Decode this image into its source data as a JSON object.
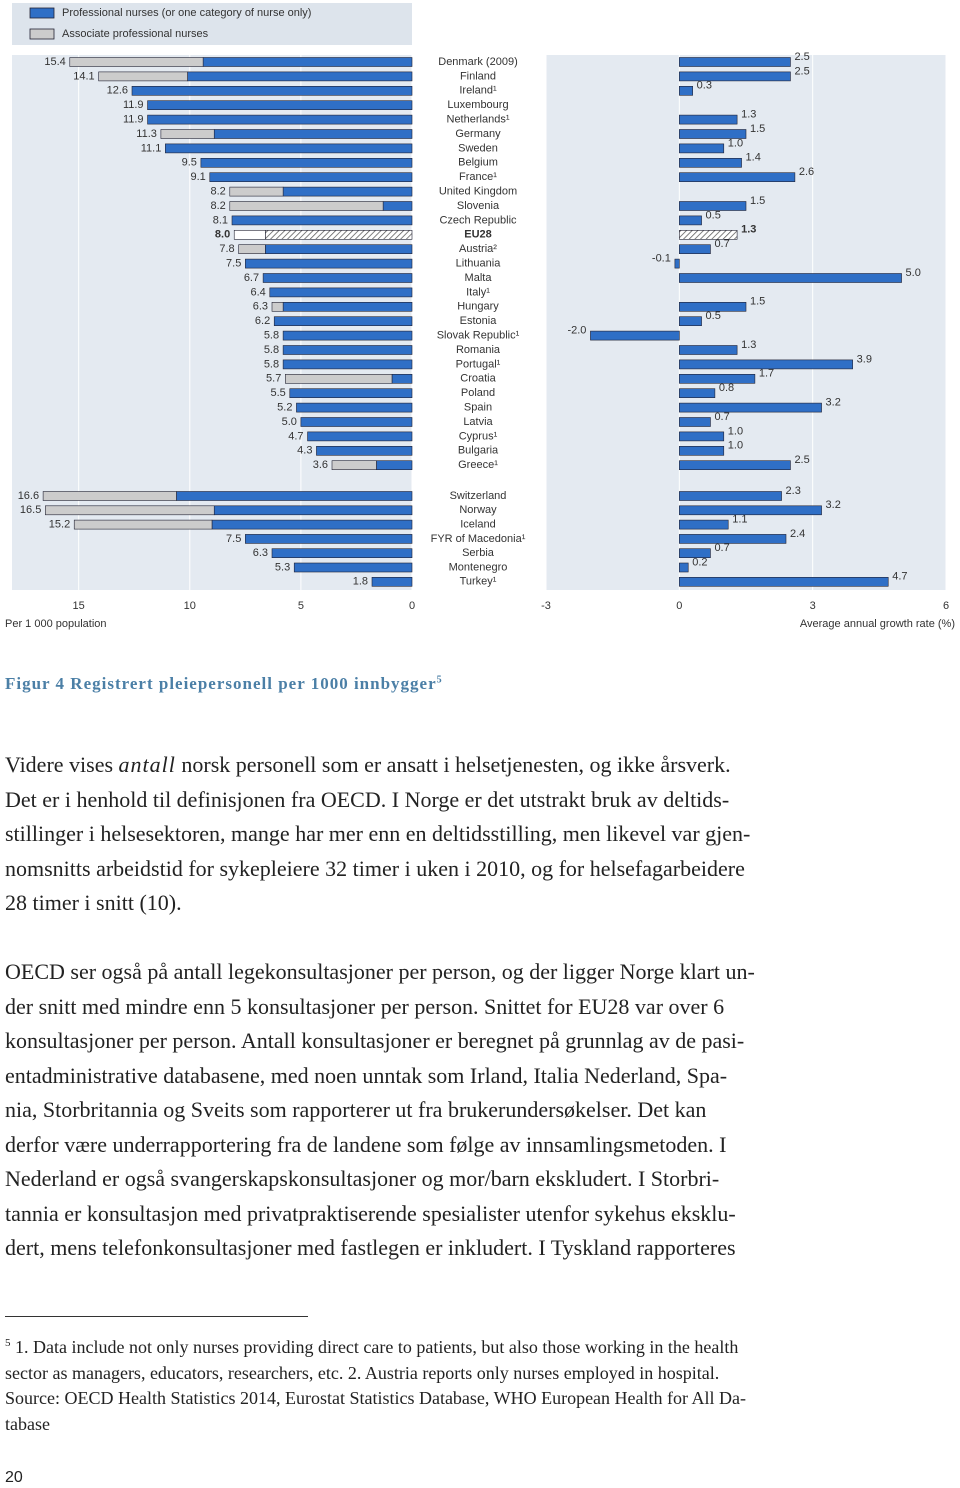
{
  "chart_data": [
    {
      "type": "bar",
      "orientation": "horizontal",
      "reversed": true,
      "highlight": 12,
      "split_after": 28,
      "x_label": "Per 1 000 population",
      "xlim": [
        0,
        18
      ],
      "xticks": [
        0,
        5,
        10,
        15
      ],
      "categories": [
        "Denmark (2009)",
        "Finland",
        "Ireland¹",
        "Luxembourg",
        "Netherlands¹",
        "Germany",
        "Sweden",
        "Belgium",
        "France¹",
        "United Kingdom",
        "Slovenia",
        "Czech Republic",
        "EU28",
        "Austria²",
        "Lithuania",
        "Malta",
        "Italy¹",
        "Hungary",
        "Estonia",
        "Slovak Republic¹",
        "Romania",
        "Portugal¹",
        "Croatia",
        "Poland",
        "Spain",
        "Latvia",
        "Cyprus¹",
        "Bulgaria",
        "Greece¹",
        "Switzerland",
        "Norway",
        "Iceland",
        "FYR of Macedonia¹",
        "Serbia",
        "Montenegro",
        "Turkey¹"
      ],
      "series": [
        {
          "name": "Professional nurses (or one category of nurse only)",
          "color": "#2f6fc6",
          "values": [
            9.4,
            10.1,
            12.6,
            11.9,
            11.9,
            8.9,
            11.1,
            9.5,
            9.1,
            5.8,
            1.3,
            8.1,
            6.6,
            6.6,
            7.5,
            6.7,
            6.4,
            5.8,
            6.2,
            5.8,
            5.8,
            5.8,
            0.9,
            5.5,
            5.2,
            5.0,
            4.7,
            4.3,
            1.6,
            10.6,
            8.9,
            9.0,
            7.5,
            6.3,
            5.3,
            1.8
          ]
        },
        {
          "name": "Associate professional nurses",
          "color": "#cccccc",
          "values": [
            6.0,
            4.0,
            0,
            0,
            0,
            2.4,
            0,
            0,
            0,
            2.4,
            6.9,
            0,
            1.4,
            1.2,
            0,
            0,
            0,
            0.5,
            0,
            0,
            0,
            0,
            4.8,
            0,
            0,
            0,
            0,
            0,
            2.0,
            6.0,
            7.6,
            6.2,
            0,
            0,
            0,
            0
          ]
        }
      ],
      "value_labels": [
        "15.4",
        "14.1",
        "12.6",
        "11.9",
        "11.9",
        "11.3",
        "11.1",
        "9.5",
        "9.1",
        "8.2",
        "8.2",
        "8.1",
        "8.0",
        "7.8",
        "7.5",
        "6.7",
        "6.4",
        "6.3",
        "6.2",
        "5.8",
        "5.8",
        "5.8",
        "5.7",
        "5.5",
        "5.2",
        "5.0",
        "4.7",
        "4.3",
        "3.6",
        "16.6",
        "16.5",
        "15.2",
        "7.5",
        "6.3",
        "5.3",
        "1.8"
      ]
    },
    {
      "type": "bar",
      "orientation": "horizontal",
      "color": "#2f6fc6",
      "x_label": "Average annual growth rate (%)",
      "xlim": [
        -3,
        6
      ],
      "xticks": [
        -3,
        0,
        3,
        6
      ],
      "values": [
        2.5,
        2.5,
        0.3,
        null,
        1.3,
        1.5,
        1.0,
        1.4,
        2.6,
        null,
        1.5,
        0.5,
        1.3,
        0.7,
        -0.1,
        5.0,
        null,
        1.5,
        0.5,
        -2.0,
        1.3,
        3.9,
        1.7,
        0.8,
        3.2,
        0.7,
        1.0,
        1.0,
        2.5,
        2.3,
        3.2,
        1.1,
        2.4,
        0.7,
        0.2,
        4.7
      ],
      "value_labels": [
        "2.5",
        "2.5",
        "0.3",
        null,
        "1.3",
        "1.5",
        "1.0",
        "1.4",
        "2.6",
        null,
        "1.5",
        "0.5",
        "1.3",
        "0.7",
        "-0.1",
        "5.0",
        null,
        "1.5",
        "0.5",
        "-2.0",
        "1.3",
        "3.9",
        "1.7",
        "0.8",
        "3.2",
        "0.7",
        "1.0",
        "1.0",
        "2.5",
        "2.3",
        "3.2",
        "1.1",
        "2.4",
        "0.7",
        "0.2",
        "4.7"
      ]
    }
  ],
  "caption": {
    "text": "Figur 4 Registrert pleiepersonell per 1000 innbygger",
    "note": "5"
  },
  "paragraphs": [
    {
      "first": [
        "Videre vises ",
        "antall",
        " norsk personell som er ansatt i helsetjenesten, og ikke årsverk."
      ],
      "lines": [
        "Det er i henhold til definisjonen fra OECD. I Norge er det utstrakt bruk av deltids-",
        "stillinger i helsesektoren, mange har mer enn en deltidsstilling, men likevel var gjen-",
        "nomsnitts arbeidstid for sykepleiere 32 timer i uken i 2010, og for helsefagarbeidere",
        "28 timer i snitt (10)."
      ]
    },
    {
      "lines": [
        "OECD ser også på antall legekonsultasjoner per person, og der ligger Norge klart un-",
        "der snitt med mindre enn 5 konsultasjoner per person. Snittet for EU28 var over 6",
        "konsultasjoner per person. Antall konsultasjoner er beregnet på grunnlag av de pasi-",
        "entadministrative databasene, med noen unntak som Irland, Italia Nederland, Spa-",
        "nia, Storbritannia og Sveits som rapporterer ut fra brukerundersøkelser. Det kan",
        "derfor være underrapportering fra de landene som følge av innsamlingsmetoden. I",
        "Nederland er også svangerskapskonsultasjoner og mor/barn ekskludert. I Storbri-",
        "tannia er konsultasjon med privatpraktiserende spesialister utenfor sykehus eksklu-",
        "dert, mens telefonkonsultasjoner med fastlegen er inkludert. I Tyskland rapporteres"
      ]
    }
  ],
  "footnote": {
    "marker": "5",
    "lines": [
      "1. Data include not only nurses providing direct care to patients, but also those working in the health",
      "sector as managers, educators, researchers, etc. 2. Austria reports only nurses employed in hospital.",
      "Source: OECD Health Statistics 2014, Eurostat Statistics Database, WHO European Health for All Da-",
      "tabase"
    ]
  },
  "page_number": "20"
}
